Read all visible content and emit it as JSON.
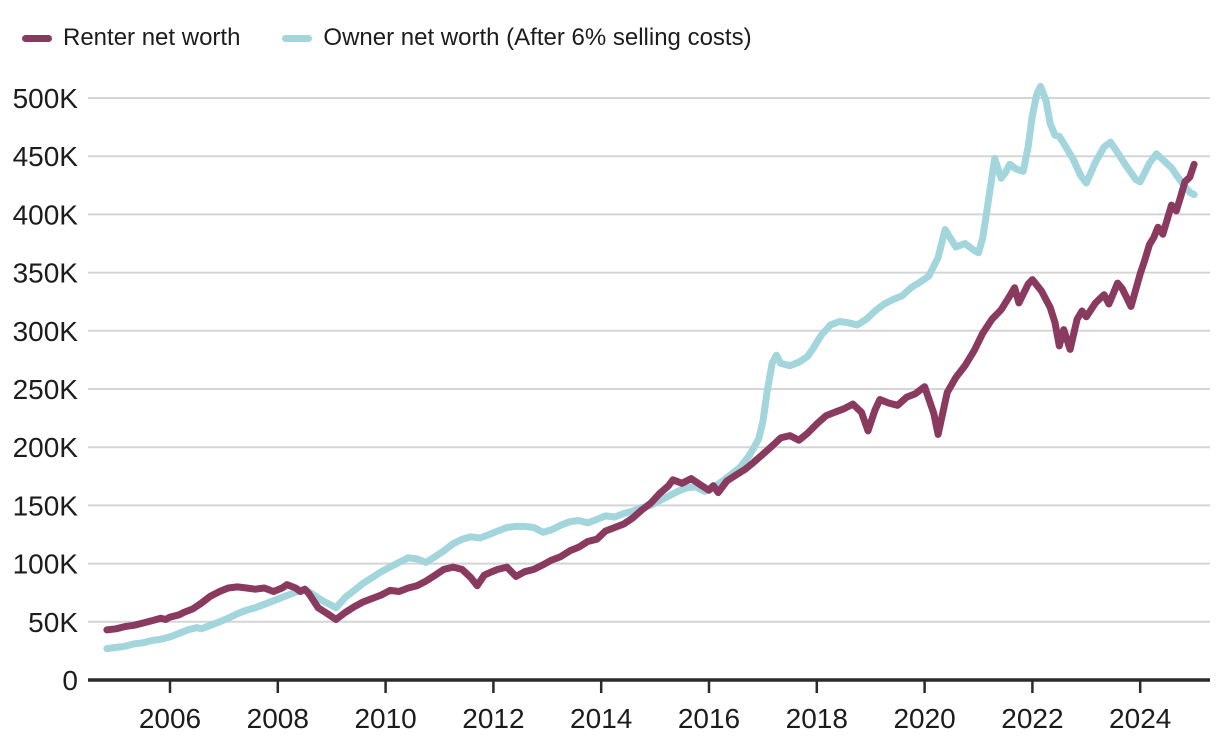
{
  "legend": {
    "items": [
      {
        "id": "renter",
        "label": "Renter net worth",
        "color": "#8a3a5e"
      },
      {
        "id": "owner",
        "label": "Owner net worth (After 6% selling costs)",
        "color": "#a2d5dc"
      }
    ]
  },
  "axes": {
    "y_tick_labels": [
      "0",
      "50K",
      "100K",
      "150K",
      "200K",
      "250K",
      "300K",
      "350K",
      "400K",
      "450K",
      "500K"
    ],
    "x_tick_labels": [
      "2006",
      "2008",
      "2010",
      "2012",
      "2014",
      "2016",
      "2018",
      "2020",
      "2022",
      "2024"
    ]
  },
  "colors": {
    "renter_line": "#8a3a5e",
    "owner_line": "#a2d5dc",
    "gridline": "#d5d5d5",
    "axis": "#2a2a2a",
    "text": "#1c1c1c"
  },
  "chart_data": {
    "type": "line",
    "title": "",
    "xlabel": "",
    "ylabel": "",
    "x_ticks": [
      2006,
      2008,
      2010,
      2012,
      2014,
      2016,
      2018,
      2020,
      2022,
      2024
    ],
    "y_ticks_k": [
      0,
      50,
      100,
      150,
      200,
      250,
      300,
      350,
      400,
      450,
      500
    ],
    "xlim": [
      2004.6,
      2025.75
    ],
    "ylim_k": [
      0,
      520
    ],
    "grid": "horizontal-only",
    "legend_position": "top-left",
    "series": [
      {
        "name": "Renter net worth",
        "color": "#8a3a5e",
        "points": [
          [
            2004.83,
            43
          ],
          [
            2005.0,
            44
          ],
          [
            2005.17,
            46
          ],
          [
            2005.33,
            47
          ],
          [
            2005.5,
            49
          ],
          [
            2005.67,
            51
          ],
          [
            2005.83,
            53
          ],
          [
            2005.92,
            52
          ],
          [
            2006.0,
            54
          ],
          [
            2006.17,
            56
          ],
          [
            2006.25,
            58
          ],
          [
            2006.42,
            61
          ],
          [
            2006.58,
            66
          ],
          [
            2006.75,
            72
          ],
          [
            2006.92,
            76
          ],
          [
            2007.08,
            79
          ],
          [
            2007.25,
            80
          ],
          [
            2007.42,
            79
          ],
          [
            2007.58,
            78
          ],
          [
            2007.75,
            79
          ],
          [
            2007.92,
            76
          ],
          [
            2008.08,
            79
          ],
          [
            2008.17,
            82
          ],
          [
            2008.33,
            79
          ],
          [
            2008.42,
            76
          ],
          [
            2008.5,
            78
          ],
          [
            2008.58,
            74
          ],
          [
            2008.75,
            62
          ],
          [
            2008.92,
            57
          ],
          [
            2009.08,
            52
          ],
          [
            2009.25,
            58
          ],
          [
            2009.42,
            63
          ],
          [
            2009.58,
            67
          ],
          [
            2009.75,
            70
          ],
          [
            2009.92,
            73
          ],
          [
            2010.08,
            77
          ],
          [
            2010.25,
            76
          ],
          [
            2010.42,
            79
          ],
          [
            2010.58,
            81
          ],
          [
            2010.75,
            85
          ],
          [
            2010.92,
            90
          ],
          [
            2011.08,
            95
          ],
          [
            2011.25,
            97
          ],
          [
            2011.42,
            95
          ],
          [
            2011.58,
            88
          ],
          [
            2011.7,
            81
          ],
          [
            2011.83,
            90
          ],
          [
            2011.92,
            92
          ],
          [
            2012.08,
            95
          ],
          [
            2012.25,
            97
          ],
          [
            2012.42,
            89
          ],
          [
            2012.58,
            93
          ],
          [
            2012.75,
            95
          ],
          [
            2012.92,
            99
          ],
          [
            2013.08,
            103
          ],
          [
            2013.25,
            106
          ],
          [
            2013.42,
            111
          ],
          [
            2013.58,
            114
          ],
          [
            2013.75,
            119
          ],
          [
            2013.92,
            121
          ],
          [
            2014.08,
            128
          ],
          [
            2014.25,
            131
          ],
          [
            2014.42,
            134
          ],
          [
            2014.58,
            139
          ],
          [
            2014.75,
            146
          ],
          [
            2014.92,
            152
          ],
          [
            2015.08,
            160
          ],
          [
            2015.25,
            167
          ],
          [
            2015.33,
            172
          ],
          [
            2015.5,
            169
          ],
          [
            2015.67,
            173
          ],
          [
            2015.83,
            168
          ],
          [
            2016.0,
            163
          ],
          [
            2016.08,
            167
          ],
          [
            2016.17,
            161
          ],
          [
            2016.33,
            171
          ],
          [
            2016.5,
            176
          ],
          [
            2016.67,
            181
          ],
          [
            2016.83,
            187
          ],
          [
            2017.0,
            194
          ],
          [
            2017.17,
            201
          ],
          [
            2017.33,
            208
          ],
          [
            2017.5,
            210
          ],
          [
            2017.67,
            206
          ],
          [
            2017.83,
            212
          ],
          [
            2018.0,
            220
          ],
          [
            2018.17,
            227
          ],
          [
            2018.33,
            230
          ],
          [
            2018.5,
            233
          ],
          [
            2018.67,
            237
          ],
          [
            2018.83,
            230
          ],
          [
            2018.95,
            214
          ],
          [
            2019.08,
            232
          ],
          [
            2019.17,
            241
          ],
          [
            2019.33,
            238
          ],
          [
            2019.5,
            236
          ],
          [
            2019.67,
            243
          ],
          [
            2019.83,
            246
          ],
          [
            2020.0,
            252
          ],
          [
            2020.17,
            229
          ],
          [
            2020.25,
            211
          ],
          [
            2020.42,
            247
          ],
          [
            2020.58,
            260
          ],
          [
            2020.75,
            270
          ],
          [
            2020.92,
            283
          ],
          [
            2021.08,
            298
          ],
          [
            2021.25,
            310
          ],
          [
            2021.42,
            318
          ],
          [
            2021.58,
            330
          ],
          [
            2021.67,
            337
          ],
          [
            2021.75,
            324
          ],
          [
            2021.92,
            340
          ],
          [
            2022.0,
            344
          ],
          [
            2022.17,
            334
          ],
          [
            2022.33,
            320
          ],
          [
            2022.42,
            307
          ],
          [
            2022.5,
            287
          ],
          [
            2022.58,
            301
          ],
          [
            2022.7,
            284
          ],
          [
            2022.83,
            310
          ],
          [
            2022.92,
            317
          ],
          [
            2023.0,
            312
          ],
          [
            2023.17,
            324
          ],
          [
            2023.33,
            331
          ],
          [
            2023.42,
            323
          ],
          [
            2023.58,
            341
          ],
          [
            2023.67,
            336
          ],
          [
            2023.83,
            321
          ],
          [
            2024.0,
            349
          ],
          [
            2024.08,
            360
          ],
          [
            2024.17,
            374
          ],
          [
            2024.25,
            380
          ],
          [
            2024.33,
            389
          ],
          [
            2024.42,
            383
          ],
          [
            2024.58,
            408
          ],
          [
            2024.67,
            403
          ],
          [
            2024.75,
            415
          ],
          [
            2024.83,
            428
          ],
          [
            2024.92,
            432
          ],
          [
            2025.0,
            443
          ]
        ]
      },
      {
        "name": "Owner net worth (After 6% selling costs)",
        "color": "#a2d5dc",
        "points": [
          [
            2004.83,
            27
          ],
          [
            2005.0,
            28
          ],
          [
            2005.17,
            29
          ],
          [
            2005.33,
            31
          ],
          [
            2005.5,
            32
          ],
          [
            2005.67,
            34
          ],
          [
            2005.83,
            35
          ],
          [
            2006.0,
            37
          ],
          [
            2006.17,
            40
          ],
          [
            2006.33,
            43
          ],
          [
            2006.5,
            45
          ],
          [
            2006.58,
            44
          ],
          [
            2006.75,
            47
          ],
          [
            2006.92,
            50
          ],
          [
            2007.08,
            53
          ],
          [
            2007.25,
            57
          ],
          [
            2007.42,
            60
          ],
          [
            2007.58,
            62
          ],
          [
            2007.75,
            65
          ],
          [
            2007.92,
            68
          ],
          [
            2008.08,
            71
          ],
          [
            2008.25,
            74
          ],
          [
            2008.42,
            77
          ],
          [
            2008.5,
            78
          ],
          [
            2008.67,
            73
          ],
          [
            2008.83,
            68
          ],
          [
            2009.0,
            64
          ],
          [
            2009.08,
            62
          ],
          [
            2009.25,
            71
          ],
          [
            2009.42,
            77
          ],
          [
            2009.58,
            83
          ],
          [
            2009.75,
            88
          ],
          [
            2009.92,
            93
          ],
          [
            2010.08,
            97
          ],
          [
            2010.25,
            101
          ],
          [
            2010.42,
            105
          ],
          [
            2010.58,
            104
          ],
          [
            2010.75,
            101
          ],
          [
            2010.92,
            106
          ],
          [
            2011.08,
            111
          ],
          [
            2011.25,
            117
          ],
          [
            2011.42,
            121
          ],
          [
            2011.58,
            123
          ],
          [
            2011.75,
            122
          ],
          [
            2011.92,
            125
          ],
          [
            2012.08,
            128
          ],
          [
            2012.25,
            131
          ],
          [
            2012.42,
            132
          ],
          [
            2012.58,
            132
          ],
          [
            2012.75,
            131
          ],
          [
            2012.92,
            127
          ],
          [
            2013.08,
            129
          ],
          [
            2013.25,
            133
          ],
          [
            2013.42,
            136
          ],
          [
            2013.58,
            137
          ],
          [
            2013.75,
            135
          ],
          [
            2013.92,
            138
          ],
          [
            2014.08,
            141
          ],
          [
            2014.25,
            140
          ],
          [
            2014.42,
            143
          ],
          [
            2014.58,
            145
          ],
          [
            2014.75,
            148
          ],
          [
            2014.92,
            150
          ],
          [
            2015.08,
            154
          ],
          [
            2015.25,
            158
          ],
          [
            2015.42,
            162
          ],
          [
            2015.58,
            165
          ],
          [
            2015.75,
            166
          ],
          [
            2015.92,
            162
          ],
          [
            2016.08,
            165
          ],
          [
            2016.25,
            171
          ],
          [
            2016.42,
            177
          ],
          [
            2016.58,
            183
          ],
          [
            2016.75,
            193
          ],
          [
            2016.92,
            207
          ],
          [
            2017.0,
            222
          ],
          [
            2017.08,
            248
          ],
          [
            2017.17,
            272
          ],
          [
            2017.25,
            279
          ],
          [
            2017.33,
            272
          ],
          [
            2017.5,
            270
          ],
          [
            2017.67,
            273
          ],
          [
            2017.83,
            278
          ],
          [
            2017.92,
            284
          ],
          [
            2018.08,
            296
          ],
          [
            2018.25,
            305
          ],
          [
            2018.42,
            308
          ],
          [
            2018.58,
            307
          ],
          [
            2018.75,
            305
          ],
          [
            2018.92,
            310
          ],
          [
            2019.08,
            317
          ],
          [
            2019.25,
            323
          ],
          [
            2019.42,
            327
          ],
          [
            2019.58,
            330
          ],
          [
            2019.75,
            337
          ],
          [
            2019.92,
            342
          ],
          [
            2020.08,
            347
          ],
          [
            2020.25,
            363
          ],
          [
            2020.38,
            387
          ],
          [
            2020.5,
            378
          ],
          [
            2020.58,
            372
          ],
          [
            2020.75,
            375
          ],
          [
            2020.92,
            369
          ],
          [
            2021.0,
            367
          ],
          [
            2021.08,
            380
          ],
          [
            2021.17,
            408
          ],
          [
            2021.3,
            448
          ],
          [
            2021.42,
            431
          ],
          [
            2021.5,
            436
          ],
          [
            2021.58,
            443
          ],
          [
            2021.7,
            439
          ],
          [
            2021.83,
            437
          ],
          [
            2021.92,
            458
          ],
          [
            2022.0,
            485
          ],
          [
            2022.08,
            503
          ],
          [
            2022.15,
            510
          ],
          [
            2022.25,
            498
          ],
          [
            2022.33,
            478
          ],
          [
            2022.42,
            468
          ],
          [
            2022.5,
            467
          ],
          [
            2022.58,
            461
          ],
          [
            2022.75,
            448
          ],
          [
            2022.9,
            433
          ],
          [
            2023.0,
            427
          ],
          [
            2023.17,
            445
          ],
          [
            2023.33,
            458
          ],
          [
            2023.45,
            462
          ],
          [
            2023.58,
            453
          ],
          [
            2023.75,
            441
          ],
          [
            2023.92,
            430
          ],
          [
            2024.0,
            428
          ],
          [
            2024.17,
            444
          ],
          [
            2024.3,
            452
          ],
          [
            2024.42,
            447
          ],
          [
            2024.58,
            440
          ],
          [
            2024.7,
            432
          ],
          [
            2024.83,
            424
          ],
          [
            2024.92,
            419
          ],
          [
            2025.0,
            417
          ]
        ]
      }
    ]
  }
}
